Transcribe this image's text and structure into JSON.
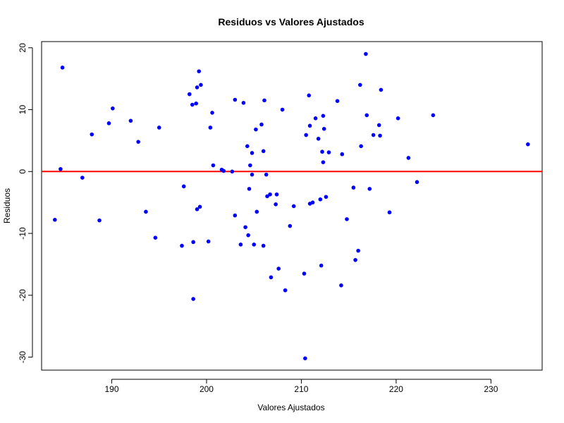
{
  "chart_data": {
    "type": "scatter",
    "title": "Residuos vs Valores Ajustados",
    "xlabel": "Valores Ajustados",
    "ylabel": "Residuos",
    "xlim": [
      182.6,
      235.4
    ],
    "ylim": [
      -32.1,
      21.0
    ],
    "xticks": [
      190,
      200,
      210,
      220,
      230
    ],
    "yticks": [
      -30,
      -20,
      -10,
      0,
      10,
      20
    ],
    "xtick_labels": [
      "190",
      "200",
      "210",
      "220",
      "230"
    ],
    "ytick_labels": [
      "-30",
      "-20",
      "-10",
      "0",
      "10",
      "20"
    ],
    "reference_line": {
      "y": 0,
      "color": "#ff0000"
    },
    "point_color": "#0000ff",
    "points": [
      {
        "x": 184.0,
        "y": -7.8
      },
      {
        "x": 184.6,
        "y": 0.4
      },
      {
        "x": 184.8,
        "y": 16.8
      },
      {
        "x": 186.9,
        "y": -1.0
      },
      {
        "x": 187.9,
        "y": 6.0
      },
      {
        "x": 188.7,
        "y": -7.9
      },
      {
        "x": 189.7,
        "y": 7.8
      },
      {
        "x": 190.1,
        "y": 10.2
      },
      {
        "x": 192.0,
        "y": 8.2
      },
      {
        "x": 192.8,
        "y": 4.8
      },
      {
        "x": 193.6,
        "y": -6.5
      },
      {
        "x": 194.6,
        "y": -10.7
      },
      {
        "x": 195.0,
        "y": 7.1
      },
      {
        "x": 197.4,
        "y": -12.0
      },
      {
        "x": 197.6,
        "y": -2.4
      },
      {
        "x": 198.2,
        "y": 12.5
      },
      {
        "x": 198.5,
        "y": 10.8
      },
      {
        "x": 198.6,
        "y": -11.4
      },
      {
        "x": 198.6,
        "y": -20.6
      },
      {
        "x": 198.9,
        "y": 11.0
      },
      {
        "x": 199.0,
        "y": 13.6
      },
      {
        "x": 199.0,
        "y": -6.1
      },
      {
        "x": 199.2,
        "y": 16.2
      },
      {
        "x": 199.3,
        "y": -5.7
      },
      {
        "x": 199.4,
        "y": 14.0
      },
      {
        "x": 200.2,
        "y": -11.3
      },
      {
        "x": 200.4,
        "y": 7.1
      },
      {
        "x": 200.6,
        "y": 9.5
      },
      {
        "x": 200.7,
        "y": 1.0
      },
      {
        "x": 201.6,
        "y": 0.3
      },
      {
        "x": 201.8,
        "y": 0.1
      },
      {
        "x": 202.7,
        "y": 0.0
      },
      {
        "x": 203.0,
        "y": 11.6
      },
      {
        "x": 203.0,
        "y": -7.1
      },
      {
        "x": 203.6,
        "y": -11.8
      },
      {
        "x": 203.9,
        "y": 11.1
      },
      {
        "x": 204.1,
        "y": -9.0
      },
      {
        "x": 204.3,
        "y": 4.1
      },
      {
        "x": 204.4,
        "y": -10.3
      },
      {
        "x": 204.5,
        "y": -2.8
      },
      {
        "x": 204.6,
        "y": 1.0
      },
      {
        "x": 204.8,
        "y": 3.0
      },
      {
        "x": 204.8,
        "y": -0.5
      },
      {
        "x": 205.0,
        "y": -11.8
      },
      {
        "x": 205.2,
        "y": 6.8
      },
      {
        "x": 205.3,
        "y": -6.5
      },
      {
        "x": 205.8,
        "y": 7.6
      },
      {
        "x": 206.0,
        "y": 3.3
      },
      {
        "x": 206.0,
        "y": -12.0
      },
      {
        "x": 206.1,
        "y": 11.5
      },
      {
        "x": 206.3,
        "y": -0.5
      },
      {
        "x": 206.4,
        "y": -4.0
      },
      {
        "x": 206.7,
        "y": -3.7
      },
      {
        "x": 206.8,
        "y": -17.1
      },
      {
        "x": 207.3,
        "y": -5.3
      },
      {
        "x": 207.4,
        "y": -3.7
      },
      {
        "x": 207.6,
        "y": -15.7
      },
      {
        "x": 208.0,
        "y": 10.0
      },
      {
        "x": 208.3,
        "y": -19.2
      },
      {
        "x": 208.8,
        "y": -8.8
      },
      {
        "x": 209.2,
        "y": -5.6
      },
      {
        "x": 210.3,
        "y": -16.5
      },
      {
        "x": 210.4,
        "y": -30.2
      },
      {
        "x": 210.5,
        "y": 5.9
      },
      {
        "x": 210.8,
        "y": 12.3
      },
      {
        "x": 210.9,
        "y": -5.2
      },
      {
        "x": 210.9,
        "y": 7.4
      },
      {
        "x": 211.2,
        "y": -5.0
      },
      {
        "x": 211.5,
        "y": 8.6
      },
      {
        "x": 211.8,
        "y": 5.3
      },
      {
        "x": 212.0,
        "y": -4.5
      },
      {
        "x": 212.1,
        "y": -15.2
      },
      {
        "x": 212.2,
        "y": 3.2
      },
      {
        "x": 212.3,
        "y": 1.5
      },
      {
        "x": 212.3,
        "y": 9.0
      },
      {
        "x": 212.4,
        "y": 6.9
      },
      {
        "x": 212.6,
        "y": -4.1
      },
      {
        "x": 212.9,
        "y": 3.1
      },
      {
        "x": 213.8,
        "y": 11.4
      },
      {
        "x": 214.2,
        "y": -18.4
      },
      {
        "x": 214.3,
        "y": 2.8
      },
      {
        "x": 214.8,
        "y": -7.7
      },
      {
        "x": 215.5,
        "y": -2.6
      },
      {
        "x": 215.7,
        "y": -14.3
      },
      {
        "x": 216.0,
        "y": -12.8
      },
      {
        "x": 216.2,
        "y": 14.0
      },
      {
        "x": 216.3,
        "y": 4.1
      },
      {
        "x": 216.8,
        "y": 19.0
      },
      {
        "x": 216.9,
        "y": 9.1
      },
      {
        "x": 217.2,
        "y": -2.8
      },
      {
        "x": 217.6,
        "y": 5.9
      },
      {
        "x": 218.2,
        "y": 7.5
      },
      {
        "x": 218.3,
        "y": 5.8
      },
      {
        "x": 218.4,
        "y": 13.2
      },
      {
        "x": 219.3,
        "y": -6.6
      },
      {
        "x": 220.2,
        "y": 8.6
      },
      {
        "x": 221.3,
        "y": 2.2
      },
      {
        "x": 222.2,
        "y": -1.7
      },
      {
        "x": 223.9,
        "y": 9.1
      },
      {
        "x": 233.9,
        "y": 4.4
      }
    ]
  }
}
